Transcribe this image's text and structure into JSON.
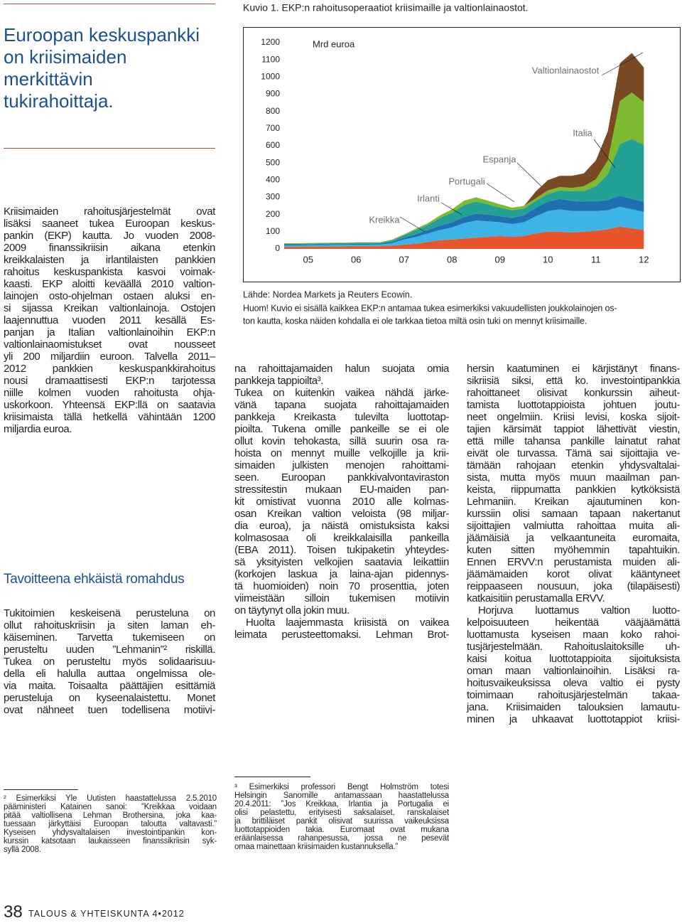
{
  "chart_data": {
    "type": "stacked_area",
    "title": "Kuvio 1. EKP:n rahoitusoperaatiot kriisimaille ja valtionlainaostot.",
    "y_label": "Mrd euroa",
    "x": [
      2005,
      2005.25,
      2005.5,
      2005.75,
      2006,
      2006.25,
      2006.5,
      2006.75,
      2007,
      2007.25,
      2007.5,
      2007.75,
      2008,
      2008.25,
      2008.5,
      2008.75,
      2009,
      2009.25,
      2009.5,
      2009.75,
      2010,
      2010.25,
      2010.5,
      2010.75,
      2011,
      2011.25,
      2011.5,
      2011.75,
      2012,
      2012.25,
      2012.5
    ],
    "series": [
      {
        "name": "Kreikka",
        "color": "#e8552c",
        "values": [
          12,
          12,
          13,
          13,
          14,
          14,
          15,
          15,
          16,
          18,
          25,
          30,
          40,
          50,
          55,
          60,
          65,
          70,
          75,
          70,
          75,
          90,
          100,
          100,
          95,
          100,
          105,
          115,
          130,
          120,
          110
        ]
      },
      {
        "name": "Irlanti",
        "color": "#3cb4e6",
        "values": [
          8,
          8,
          8,
          9,
          9,
          9,
          10,
          10,
          10,
          15,
          30,
          40,
          50,
          60,
          70,
          90,
          100,
          90,
          80,
          75,
          80,
          100,
          120,
          130,
          125,
          120,
          115,
          110,
          115,
          110,
          105
        ]
      },
      {
        "name": "Portugali",
        "color": "#1f6fb2",
        "values": [
          5,
          5,
          5,
          5,
          5,
          5,
          5,
          5,
          5,
          8,
          10,
          15,
          20,
          25,
          30,
          35,
          40,
          40,
          35,
          35,
          40,
          50,
          55,
          60,
          60,
          55,
          55,
          60,
          65,
          60,
          60
        ]
      },
      {
        "name": "Espanja",
        "color": "#24a197",
        "values": [
          5,
          5,
          5,
          5,
          5,
          5,
          5,
          5,
          5,
          8,
          15,
          25,
          30,
          45,
          55,
          70,
          70,
          60,
          50,
          45,
          40,
          40,
          45,
          50,
          55,
          60,
          90,
          150,
          300,
          350,
          330
        ]
      },
      {
        "name": "Italia",
        "color": "#7dba2f",
        "values": [
          3,
          3,
          3,
          3,
          3,
          3,
          3,
          3,
          3,
          5,
          5,
          8,
          10,
          15,
          20,
          25,
          25,
          20,
          20,
          15,
          15,
          15,
          20,
          20,
          20,
          30,
          40,
          80,
          250,
          270,
          250
        ]
      },
      {
        "name": "Valtionlainaostot",
        "color": "#7a4a24",
        "values": [
          0,
          0,
          0,
          0,
          0,
          0,
          0,
          0,
          0,
          0,
          0,
          0,
          0,
          0,
          0,
          0,
          0,
          0,
          0,
          0,
          0,
          40,
          60,
          65,
          70,
          75,
          110,
          170,
          220,
          230,
          200
        ]
      }
    ],
    "xlim": [
      2005,
      2013
    ],
    "xticks": [
      {
        "value": 2005,
        "label": "05"
      },
      {
        "value": 2006,
        "label": "06"
      },
      {
        "value": 2007,
        "label": "07"
      },
      {
        "value": 2008,
        "label": "08"
      },
      {
        "value": 2009,
        "label": "09"
      },
      {
        "value": 2010,
        "label": "10"
      },
      {
        "value": 2011,
        "label": "11"
      },
      {
        "value": 2012,
        "label": "12"
      }
    ],
    "ylim": [
      0,
      1200
    ],
    "yticks": [
      0,
      100,
      200,
      300,
      400,
      500,
      600,
      700,
      800,
      900,
      1000,
      1100,
      1200
    ],
    "grid": false,
    "source": "Lähde: Nordea Markets ja Reuters Ecowin.",
    "note": [
      "Huom! Kuvio ei sisällä kaikkea EKP:n antamaa tukea esimerkiksi vakuudellisten joukkolainojen os-",
      "ton kautta, koska näiden kohdalla ei ole tarkkaa tietoa miltä osin tuki on mennyt kriisimaille."
    ]
  },
  "left_column": {
    "title": [
      "Euroopan keskuspankki",
      "on kriisimaiden",
      "merkittävin",
      "tukirahoittaja."
    ],
    "intro": [
      "Kriisimaiden rahoitusjärjestelmät ovat",
      "lisäksi saaneet tukea Euroopan keskus-",
      "pankin (EKP) kautta. Jo vuoden 2008-",
      "2009 finanssikriisin aikana etenkin",
      "kreikkalaisten ja irlantilaisten pankkien",
      "rahoitus keskuspankista kasvoi voimak-",
      "kaasti. EKP aloitti keväällä 2010 valtion-",
      "lainojen osto-ohjelman ostaen aluksi en-",
      "si sijassa Kreikan valtionlainoja. Ostojen",
      "laajennuttua vuoden 2011 kesällä Es-",
      "panjan ja Italian valtionlainoihin EKP:n",
      "valtionlainaomistukset ovat nousseet",
      "yli 200 miljardiin euroon. Talvella 2011–",
      "2012 pankkien keskuspankkirahoitus",
      "nousi dramaattisesti EKP:n tarjotessa",
      "niille kolmen vuoden rahoitusta ohja-",
      "uskorkoon. Yhteensä EKP:llä on saatavia",
      "kriisimaista tällä hetkellä vähintään 1200",
      "miljardia euroa."
    ],
    "heading": "Tavoitteena ehkäistä romahdus",
    "body": [
      "Tukitoimien keskeisenä perusteluna on",
      "ollut rahoituskriisin ja siten laman eh-",
      "käiseminen. Tarvetta tukemiseen on",
      "perusteltu uuden ”Lehmanin”² riskillä.",
      "Tukea on perusteltu myös solidaarisuu-",
      "della eli halulla auttaa ongelmissa ole-",
      "via maita. Toisaalta päättäjien esittämiä",
      "perusteluja on kyseenalaistettu. Monet",
      "ovat nähneet tuen todellisena motiivi-"
    ],
    "footnote": [
      "² Esimerkiksi Yle Uutisten haastattelussa 2.5.2010",
      "pääministeri Katainen sanoi: ”Kreikkaa voidaan",
      "pitää valtiollisena Lehman Brothersina, joka kaa-",
      "tuessaan järkyttäisi Euroopan taloutta valtavasti.”",
      "Kyseisen yhdysvaltalaisen investointipankin kon-",
      "kurssin katsotaan laukaisseen finanssikriisin syk-",
      "syllä 2008."
    ]
  },
  "middle_column": {
    "paragraphs": [
      [
        "na rahoittajamaiden halun suojata omia",
        "pankkeja tappioilta³."
      ],
      [
        "Tukea on kuitenkin vaikea nähdä järke-",
        "vänä tapana suojata rahoittajamaiden",
        "pankkeja Kreikasta tulevilta luottotap-",
        "pioilta. Tukena omille pankeille se ei ole",
        "ollut kovin tehokasta, sillä suurin osa ra-",
        "hoista on mennyt muille velkojille ja krii-",
        "simaiden julkisten menojen rahoittami-",
        "seen. Euroopan pankkivalvontaviraston",
        "stressitestin mukaan EU-maiden pan-",
        "kit omistivat vuonna 2010 alle kolmas-",
        "osan Kreikan valtion veloista (98 miljar-",
        "dia euroa), ja näistä omistuksista kaksi",
        "kolmasosaa oli kreikkalaisilla pankeilla",
        "(EBA 2011). Toisen tukipaketin yhteydes-",
        "sä yksityisten velkojien saatavia leikattiin",
        "(korkojen laskua ja laina-ajan pidennys-",
        "tä huomioiden) noin 70 prosenttia, joten",
        "viimeistään silloin tukemisen motiivin",
        "on täytynyt olla jokin muu."
      ],
      [
        "Huolta laajemmasta kriisistä on vaikea",
        "leimata perusteettomaksi. Lehman Brot-"
      ]
    ],
    "footnote": [
      "³ Esimerkiksi professori Bengt Holmström totesi",
      "Helsingin Sanomille antamassaan haastattelussa",
      "20.4.2011: ”Jos Kreikkaa, Irlantia ja Portugalia ei",
      "olisi pelastettu, erityisesti saksalaiset, ranskalaiset",
      "ja brittiläiset pankit olisivat suurissa vaikeuksissa",
      "luottotappioiden takia. Euromaat ovat mukana",
      "eräänlaisessa rahanpesussa, jossa ne pesevät",
      "omaa mainettaan kriisimaiden kustannuksella.”"
    ]
  },
  "right_column": {
    "paragraphs": [
      [
        "hersin kaatuminen ei kärjistänyt finans-",
        "sikriisiä siksi, että ko. investointipankkia",
        "rahoittaneet olisivat konkurssin aiheut-",
        "tamista luottotappioista johtuen joutu-",
        "neet ongelmiin. Kriisi levisi, koska sijoit-",
        "tajien kärsimät tappiot lähettivät viestin,",
        "että mille tahansa pankille lainatut rahat",
        "eivät ole turvassa. Tämä sai sijoittajia ve-",
        "tämään rahojaan etenkin yhdysvaltalai-",
        "sista, mutta myös muun maailman pan-",
        "keista, riippumatta pankkien kytköksistä",
        "Lehmaniin. Kreikan ajautuminen kon-",
        "kurssiin olisi samaan tapaan nakertanut",
        "sijoittajien valmiutta rahoittaa muita ali-",
        "jäämäisiä ja velkaantuneita euromaita,",
        "kuten sitten myöhemmin tapahtuikin.",
        "Ennen ERVV:n perustamista muiden ali-",
        "jäämämaiden korot olivat kääntyneet",
        "reippaaseen nousuun, joka (tilapäisesti)",
        "katkaisitiin perustamalla ERVV."
      ],
      [
        "Horjuva luottamus valtion luotto-",
        "kelpoisuuteen heikentää vääjäämättä",
        "luottamusta kyseisen maan koko rahoi-",
        "tusjärjestelmään. Rahoituslaitoksille uh-",
        "kaisi koitua luottotappioita sijoituksista",
        "oman maan valtionlainoihin. Lisäksi ra-",
        "hoitusvaikeuksissa oleva valtio ei pysty",
        "toimimaan rahoitusjärjestelmän takaa-",
        "jana. Kriisimaiden talouksien lamautu-",
        "minen ja uhkaavat luottotappiot kriisi-"
      ]
    ]
  },
  "footer": {
    "page_number": "38",
    "publication": "TALOUS & YHTEISKUNTA 4•2012"
  }
}
